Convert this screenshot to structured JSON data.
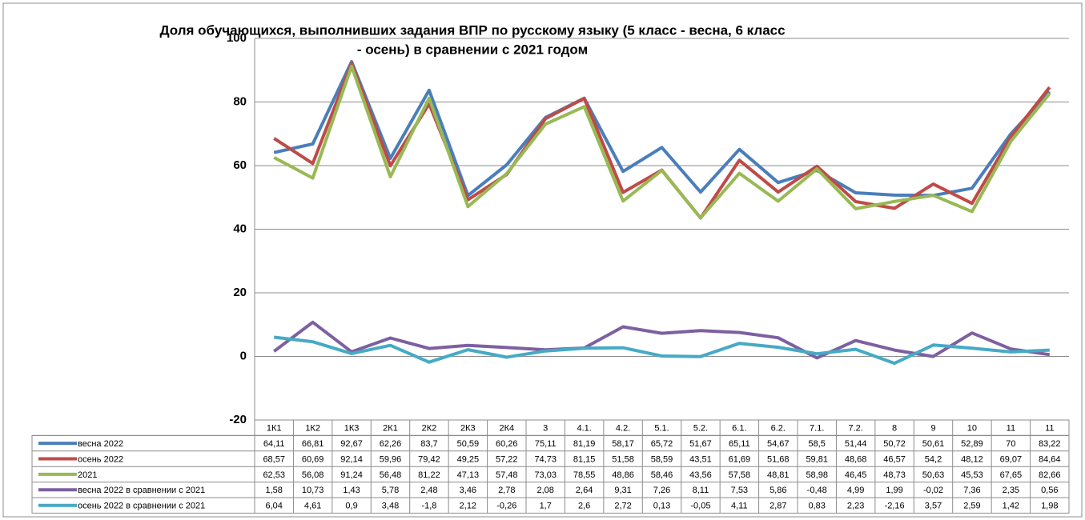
{
  "chart_data": {
    "type": "line",
    "title_lines": [
      "Доля обучающихся, выполнивших задания ВПР по русскому языку (5 класс - весна, 6 класс",
      "- осень) в сравнении с 2021 годом"
    ],
    "categories": [
      "1К1",
      "1К2",
      "1К3",
      "2К1",
      "2К2",
      "2К3",
      "2К4",
      "3",
      "4.1.",
      "4.2.",
      "5.1.",
      "5.2.",
      "6.1.",
      "6.2.",
      "7.1.",
      "7.2.",
      "8",
      "9",
      "10",
      "11",
      "11"
    ],
    "ylim": [
      -20,
      100
    ],
    "yticks": [
      -20,
      0,
      20,
      40,
      60,
      80,
      100
    ],
    "grid": true,
    "series": [
      {
        "name": "весна 2022",
        "color": "#4a7ebb",
        "values": [
          64.11,
          66.81,
          92.67,
          62.26,
          83.7,
          50.59,
          60.26,
          75.11,
          81.19,
          58.17,
          65.72,
          51.67,
          65.11,
          54.67,
          58.5,
          51.44,
          50.72,
          50.61,
          52.89,
          70,
          83.22
        ],
        "value_labels": [
          "64,11",
          "66,81",
          "92,67",
          "62,26",
          "83,7",
          "50,59",
          "60,26",
          "75,11",
          "81,19",
          "58,17",
          "65,72",
          "51,67",
          "65,11",
          "54,67",
          "58,5",
          "51,44",
          "50,72",
          "50,61",
          "52,89",
          "70",
          "83,22"
        ]
      },
      {
        "name": "осень 2022",
        "color": "#be4b48",
        "values": [
          68.57,
          60.69,
          92.14,
          59.96,
          79.42,
          49.25,
          57.22,
          74.73,
          81.15,
          51.58,
          58.59,
          43.51,
          61.69,
          51.68,
          59.81,
          48.68,
          46.57,
          54.2,
          48.12,
          69.07,
          84.64
        ],
        "value_labels": [
          "68,57",
          "60,69",
          "92,14",
          "59,96",
          "79,42",
          "49,25",
          "57,22",
          "74,73",
          "81,15",
          "51,58",
          "58,59",
          "43,51",
          "61,69",
          "51,68",
          "59,81",
          "48,68",
          "46,57",
          "54,2",
          "48,12",
          "69,07",
          "84,64"
        ]
      },
      {
        "name": "2021",
        "color": "#98b954",
        "values": [
          62.53,
          56.08,
          91.24,
          56.48,
          81.22,
          47.13,
          57.48,
          73.03,
          78.55,
          48.86,
          58.46,
          43.56,
          57.58,
          48.81,
          58.98,
          46.45,
          48.73,
          50.63,
          45.53,
          67.65,
          82.66
        ],
        "value_labels": [
          "62,53",
          "56,08",
          "91,24",
          "56,48",
          "81,22",
          "47,13",
          "57,48",
          "73,03",
          "78,55",
          "48,86",
          "58,46",
          "43,56",
          "57,58",
          "48,81",
          "58,98",
          "46,45",
          "48,73",
          "50,63",
          "45,53",
          "67,65",
          "82,66"
        ]
      },
      {
        "name": "весна 2022 в сравнении с 2021",
        "color": "#7d60a0",
        "values": [
          1.58,
          10.73,
          1.43,
          5.78,
          2.48,
          3.46,
          2.78,
          2.08,
          2.64,
          9.31,
          7.26,
          8.11,
          7.53,
          5.86,
          -0.48,
          4.99,
          1.99,
          -0.02,
          7.36,
          2.35,
          0.56
        ],
        "value_labels": [
          "1,58",
          "10,73",
          "1,43",
          "5,78",
          "2,48",
          "3,46",
          "2,78",
          "2,08",
          "2,64",
          "9,31",
          "7,26",
          "8,11",
          "7,53",
          "5,86",
          "-0,48",
          "4,99",
          "1,99",
          "-0,02",
          "7,36",
          "2,35",
          "0,56"
        ]
      },
      {
        "name": "осень 2022 в сравнении с 2021",
        "color": "#46aac5",
        "values": [
          6.04,
          4.61,
          0.9,
          3.48,
          -1.8,
          2.12,
          -0.26,
          1.7,
          2.6,
          2.72,
          0.13,
          -0.05,
          4.11,
          2.87,
          0.83,
          2.23,
          -2.16,
          3.57,
          2.59,
          1.42,
          1.98
        ],
        "value_labels": [
          "6,04",
          "4,61",
          "0,9",
          "3,48",
          "-1,8",
          "2,12",
          "-0,26",
          "1,7",
          "2,6",
          "2,72",
          "0,13",
          "-0,05",
          "4,11",
          "2,87",
          "0,83",
          "2,23",
          "-2,16",
          "3,57",
          "2,59",
          "1,42",
          "1,98"
        ]
      }
    ]
  }
}
